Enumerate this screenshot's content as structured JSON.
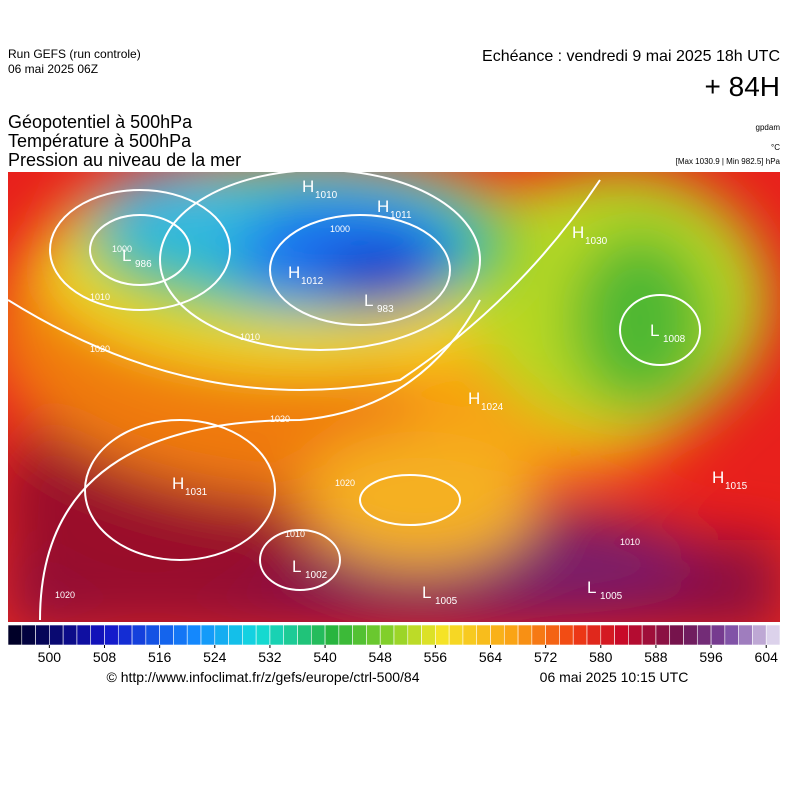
{
  "header": {
    "run": "Run GEFS (run controle)",
    "run_date": "06 mai 2025 06Z",
    "echeance": "Echéance : vendredi 9 mai 2025 18h UTC",
    "lead": "+ 84H",
    "titles": [
      "Géopotentiel à 500hPa",
      "Température à 500hPa",
      "Pression au niveau de la mer"
    ],
    "units": [
      "gpdam",
      "°C",
      "[Max 1030.9 | Min 982.5] hPa"
    ]
  },
  "pressure_centers": [
    {
      "kind": "L",
      "value": 986
    },
    {
      "kind": "H",
      "value": 1010
    },
    {
      "kind": "H",
      "value": 1011
    },
    {
      "kind": "H",
      "value": 1012
    },
    {
      "kind": "L",
      "value": 983
    },
    {
      "kind": "H",
      "value": 1030
    },
    {
      "kind": "L",
      "value": 1008
    },
    {
      "kind": "H",
      "value": 1024
    },
    {
      "kind": "H",
      "value": 1031
    },
    {
      "kind": "L",
      "value": 1002
    },
    {
      "kind": "L",
      "value": 1005
    },
    {
      "kind": "L",
      "value": 1005
    },
    {
      "kind": "H",
      "value": 1015
    }
  ],
  "isobar_labels": [
    1000,
    1010,
    1000,
    1010,
    1020,
    1020,
    1020,
    1020,
    1010,
    1010
  ],
  "colorbar": {
    "lim": [
      494,
      606
    ],
    "ticks": [
      500,
      508,
      516,
      524,
      532,
      540,
      548,
      556,
      564,
      572,
      580,
      588,
      596,
      604
    ]
  },
  "footer": {
    "source": "© http://www.infoclimat.fr/z/gefs/europe/ctrl-500/84",
    "generated": "06 mai 2025 10:15 UTC"
  }
}
